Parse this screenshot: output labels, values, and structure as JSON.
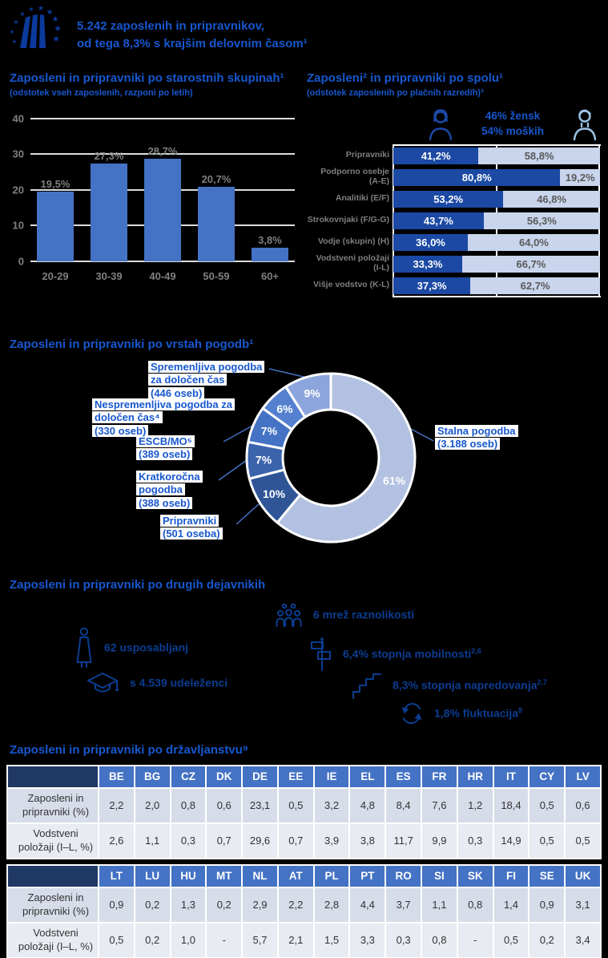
{
  "header": {
    "line1": "5.242 zaposlenih in pripravnikov,",
    "line2": "od tega 8,3% s krajšim delovnim časom¹"
  },
  "colors": {
    "background": "#000000",
    "title_blue": "#1757CE",
    "brand_blue": "#0C3A9C",
    "bar_blue": "#4472C4",
    "female_blue": "#1B49A4",
    "male_light_blue": "#C9D5EC",
    "table_header_blue": "#4472C4",
    "table_corner_navy": "#1F3864",
    "table_band_dark": "#D7DCE9",
    "table_band_light": "#E9EBF2",
    "gray_label": "#7F7F7F"
  },
  "chart_data": [
    {
      "id": "age",
      "type": "bar",
      "title": "Zaposleni in pripravniki po starostnih skupinah¹",
      "subtitle": "(odstotek vseh zaposlenih, razponi po letih)",
      "categories": [
        "20-29",
        "30-39",
        "40-49",
        "50-59",
        "60+"
      ],
      "values": [
        19.5,
        27.3,
        28.7,
        20.7,
        3.8
      ],
      "value_labels": [
        "19,5%",
        "27,3%",
        "28,7%",
        "20,7%",
        "3,8%"
      ],
      "ylim": [
        0,
        40
      ],
      "yticks": [
        0,
        10,
        20,
        30,
        40
      ],
      "bar_color": "#4472C4",
      "grid": true,
      "legend_position": "none"
    },
    {
      "id": "gender",
      "type": "stacked-bar-h",
      "title": "Zaposleni²  in pripravniki po spolu¹",
      "subtitle": "(odstotek zaposlenih po plačnih razredih)³",
      "legend": {
        "female": "46% žensk",
        "male": "54% moških"
      },
      "series_colors": {
        "female": "#1B49A4",
        "male": "#C9D5EC"
      },
      "x_range": [
        0,
        100
      ],
      "rows": [
        {
          "label": "Pripravniki",
          "female": 41.2,
          "male": 58.8,
          "female_label": "41,2%",
          "male_label": "58,8%"
        },
        {
          "label": "Podporno osebje (A-E)",
          "female": 80.8,
          "male": 19.2,
          "female_label": "80,8%",
          "male_label": "19,2%"
        },
        {
          "label": "Analitiki (E/F)",
          "female": 53.2,
          "male": 46.8,
          "female_label": "53,2%",
          "male_label": "46,8%"
        },
        {
          "label": "Strokovnjaki (F/G-G)",
          "female": 43.7,
          "male": 56.3,
          "female_label": "43,7%",
          "male_label": "56,3%"
        },
        {
          "label": "Vodje (skupin) (H)",
          "female": 36.0,
          "male": 64.0,
          "female_label": "36,0%",
          "male_label": "64,0%"
        },
        {
          "label": "Vodstveni položaji (I-L)",
          "female": 33.3,
          "male": 66.7,
          "female_label": "33,3%",
          "male_label": "66,7%"
        },
        {
          "label": "Višje vodstvo (K-L)",
          "female": 37.3,
          "male": 62.7,
          "female_label": "37,3%",
          "male_label": "62,7%"
        }
      ]
    },
    {
      "id": "contracts",
      "type": "donut",
      "title": "Zaposleni in pripravniki po vrstah pogodb¹",
      "start": "top",
      "direction": "clockwise",
      "slices": [
        {
          "name": "Stalna pogodba",
          "note": "(3.188 oseb)",
          "value": 61,
          "pct_label": "61%",
          "color": "#B2C1E1"
        },
        {
          "name": "Pripravniki",
          "note": "(501 oseba)",
          "value": 10,
          "pct_label": "10%",
          "color": "#2F5597"
        },
        {
          "name": "Kratkoročna pogodba",
          "note": "(388 oseb)",
          "value": 7,
          "pct_label": "7%",
          "color": "#3A63AC"
        },
        {
          "name": "ESCB/MO⁵",
          "note": "(389 oseb)",
          "value": 7,
          "pct_label": "7%",
          "color": "#4472C4"
        },
        {
          "name": "Nespremenljiva pogodba za določen čas⁴",
          "note": "(330 oseb)",
          "value": 6,
          "pct_label": "6%",
          "color": "#5480CF"
        },
        {
          "name": "Spremenljiva pogodba za določen čas",
          "note": "(446 oseb)",
          "value": 9,
          "pct_label": "9%",
          "color": "#8CA5DC"
        }
      ]
    },
    {
      "id": "citizenship-1",
      "type": "table",
      "columns": [
        "BE",
        "BG",
        "CZ",
        "DK",
        "DE",
        "EE",
        "IE",
        "EL",
        "ES",
        "FR",
        "HR",
        "IT",
        "CY",
        "LV"
      ],
      "row_labels": [
        "Zaposleni in pripravniki (%)",
        "Vodstveni položaji (I–L, %)"
      ],
      "rows": [
        [
          "2,2",
          "2,0",
          "0,8",
          "0,6",
          "23,1",
          "0,5",
          "3,2",
          "4,8",
          "8,4",
          "7,6",
          "1,2",
          "18,4",
          "0,5",
          "0,6"
        ],
        [
          "2,6",
          "1,1",
          "0,3",
          "0,7",
          "29,6",
          "0,7",
          "3,9",
          "3,8",
          "11,7",
          "9,9",
          "0,3",
          "14,9",
          "0,5",
          "0,5"
        ]
      ]
    },
    {
      "id": "citizenship-2",
      "type": "table",
      "columns": [
        "LT",
        "LU",
        "HU",
        "MT",
        "NL",
        "AT",
        "PL",
        "PT",
        "RO",
        "SI",
        "SK",
        "FI",
        "SE",
        "UK"
      ],
      "row_labels": [
        "Zaposleni in pripravniki (%)",
        "Vodstveni položaji (I–L, %)"
      ],
      "rows": [
        [
          "0,9",
          "0,2",
          "1,3",
          "0,2",
          "2,9",
          "2,2",
          "2,8",
          "4,4",
          "3,7",
          "1,1",
          "0,8",
          "1,4",
          "0,9",
          "3,1"
        ],
        [
          "0,5",
          "0,2",
          "1,0",
          "-",
          "5,7",
          "2,1",
          "1,5",
          "3,3",
          "0,3",
          "0,8",
          "-",
          "0,5",
          "0,2",
          "3,4"
        ]
      ]
    }
  ],
  "factors": {
    "title": "Zaposleni in pripravniki po drugih dejavnikih",
    "items": [
      {
        "icon": "trainer-icon",
        "text": "62 usposabljanj",
        "sup": ""
      },
      {
        "icon": "graduation-cap-icon",
        "text": "s 4.539 udeleženci",
        "sup": ""
      },
      {
        "icon": "diversity-networks-icon",
        "text": "6 mrež raznolikosti",
        "sup": ""
      },
      {
        "icon": "signpost-icon",
        "text": "6,4% stopnja mobilnosti",
        "sup": "2,6"
      },
      {
        "icon": "stairs-icon",
        "text": "8,3% stopnja napredovanja",
        "sup": "2,7"
      },
      {
        "icon": "turnover-icon",
        "text": "1,8% fluktuacija",
        "sup": "8"
      }
    ]
  },
  "citizenship_title": "Zaposleni in pripravniki po državljanstvu⁹"
}
